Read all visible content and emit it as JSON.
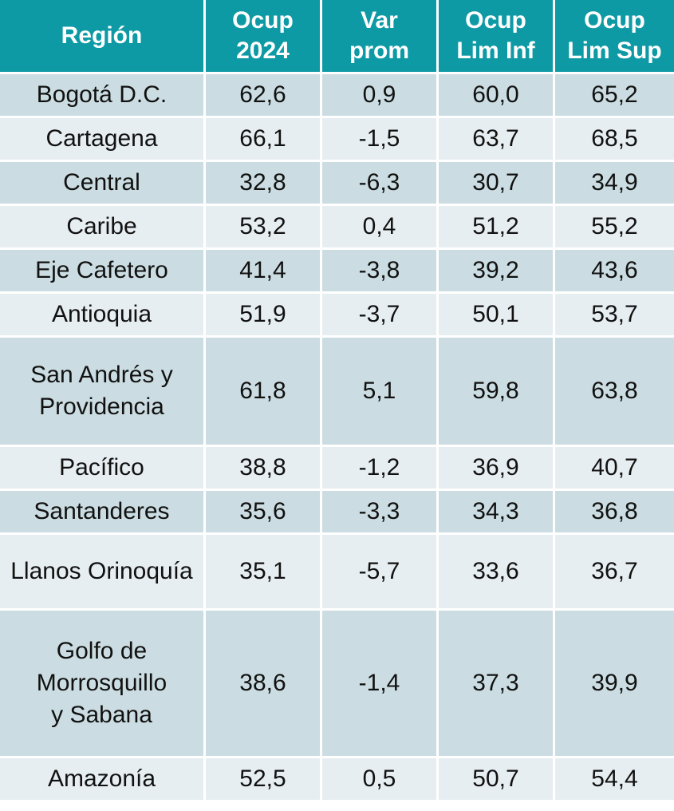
{
  "headers": {
    "region": "Región",
    "ocup_2024": "Ocup\n2024",
    "var_prom": "Var\nprom",
    "lim_inf": "Ocup\nLim Inf",
    "lim_sup": "Ocup\nLim Sup"
  },
  "rows": [
    {
      "region": "Bogotá D.C.",
      "ocup": "62,6",
      "var": "0,9",
      "inf": "60,0",
      "sup": "65,2"
    },
    {
      "region": "Cartagena",
      "ocup": "66,1",
      "var": "-1,5",
      "inf": "63,7",
      "sup": "68,5"
    },
    {
      "region": "Central",
      "ocup": "32,8",
      "var": "-6,3",
      "inf": "30,7",
      "sup": "34,9"
    },
    {
      "region": "Caribe",
      "ocup": "53,2",
      "var": "0,4",
      "inf": "51,2",
      "sup": "55,2"
    },
    {
      "region": "Eje Cafetero",
      "ocup": "41,4",
      "var": "-3,8",
      "inf": "39,2",
      "sup": "43,6"
    },
    {
      "region": "Antioquia",
      "ocup": "51,9",
      "var": "-3,7",
      "inf": "50,1",
      "sup": "53,7"
    },
    {
      "region": "San Andrés y\nProvidencia",
      "ocup": "61,8",
      "var": "5,1",
      "inf": "59,8",
      "sup": "63,8"
    },
    {
      "region": "Pacífico",
      "ocup": "38,8",
      "var": "-1,2",
      "inf": "36,9",
      "sup": "40,7"
    },
    {
      "region": "Santanderes",
      "ocup": "35,6",
      "var": "-3,3",
      "inf": "34,3",
      "sup": "36,8"
    },
    {
      "region": "Llanos Orinoquía",
      "ocup": "35,1",
      "var": "-5,7",
      "inf": "33,6",
      "sup": "36,7"
    },
    {
      "region": "Golfo de\nMorrosquillo\ny Sabana",
      "ocup": "38,6",
      "var": "-1,4",
      "inf": "37,3",
      "sup": "39,9"
    },
    {
      "region": "Amazonía",
      "ocup": "52,5",
      "var": "0,5",
      "inf": "50,7",
      "sup": "54,4"
    }
  ]
}
